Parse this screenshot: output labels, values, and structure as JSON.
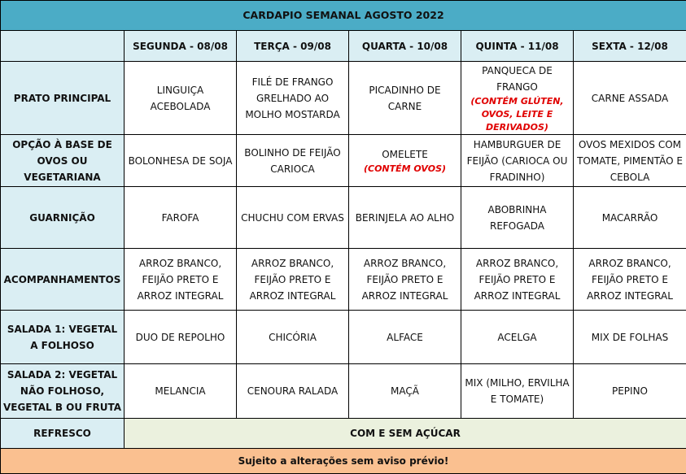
{
  "title": "CARDAPIO SEMANAL AGOSTO 2022",
  "days": [
    "SEGUNDA - 08/08",
    "TERÇA - 09/08",
    "QUARTA - 10/08",
    "QUINTA - 11/08",
    "SEXTA - 12/08"
  ],
  "rows": [
    {
      "label": "PRATO PRINCIPAL",
      "cells": [
        {
          "text": "LINGUIÇA ACEBOLADA"
        },
        {
          "text": "FILÉ DE FRANGO GRELHADO AO MOLHO MOSTARDA"
        },
        {
          "text": "PICADINHO DE CARNE"
        },
        {
          "text": "PANQUECA DE FRANGO",
          "warning": "(CONTÉM GLÚTEN, OVOS, LEITE E DERIVADOS)"
        },
        {
          "text": "CARNE ASSADA"
        }
      ]
    },
    {
      "label": "OPÇÃO À BASE DE OVOS OU VEGETARIANA",
      "cells": [
        {
          "text": "BOLONHESA DE SOJA"
        },
        {
          "text": "BOLINHO DE FEIJÃO CARIOCA"
        },
        {
          "text": "OMELETE",
          "warning": "(CONTÉM OVOS)"
        },
        {
          "text": "HAMBURGUER DE FEIJÃO (CARIOCA OU FRADINHO)"
        },
        {
          "text": "OVOS MEXIDOS COM TOMATE, PIMENTÃO E CEBOLA"
        }
      ]
    },
    {
      "label": "GUARNIÇÃO",
      "cells": [
        {
          "text": "FAROFA"
        },
        {
          "text": "CHUCHU COM ERVAS"
        },
        {
          "text": "BERINJELA AO ALHO"
        },
        {
          "text": "ABOBRINHA REFOGADA"
        },
        {
          "text": "MACARRÃO"
        }
      ]
    },
    {
      "label": "ACOMPANHAMENTOS",
      "cells": [
        {
          "text": "ARROZ BRANCO, FEIJÃO PRETO E ARROZ INTEGRAL"
        },
        {
          "text": "ARROZ BRANCO, FEIJÃO PRETO E ARROZ INTEGRAL"
        },
        {
          "text": "ARROZ BRANCO, FEIJÃO PRETO E ARROZ INTEGRAL"
        },
        {
          "text": "ARROZ BRANCO, FEIJÃO PRETO E ARROZ INTEGRAL"
        },
        {
          "text": "ARROZ BRANCO, FEIJÃO PRETO E ARROZ INTEGRAL"
        }
      ]
    },
    {
      "label": "SALADA 1: VEGETAL A FOLHOSO",
      "cells": [
        {
          "text": "DUO DE REPOLHO"
        },
        {
          "text": "CHICÓRIA"
        },
        {
          "text": "ALFACE"
        },
        {
          "text": "ACELGA"
        },
        {
          "text": "MIX DE FOLHAS"
        }
      ]
    },
    {
      "label": "SALADA 2: VEGETAL NÃO FOLHOSO, VEGETAL B OU FRUTA",
      "cells": [
        {
          "text": "MELANCIA"
        },
        {
          "text": "CENOURA RALADA"
        },
        {
          "text": "MAÇÃ"
        },
        {
          "text": "MIX (MILHO, ERVILHA E TOMATE)"
        },
        {
          "text": "PEPINO"
        }
      ]
    }
  ],
  "refresco": {
    "label": "REFRESCO",
    "value": "COM E SEM AÇÚCAR"
  },
  "footer": "Sujeito a alterações sem aviso prévio!",
  "colors": {
    "title_bg": "#4BACC6",
    "header_bg": "#DAEEF3",
    "refresco_bg": "#EBF1DE",
    "footer_bg": "#FAC090",
    "warning": "#E00000"
  }
}
